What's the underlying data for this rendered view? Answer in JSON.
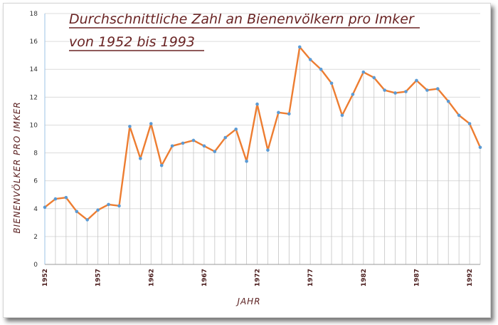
{
  "chart_data": {
    "type": "line",
    "title": "Durchschnittliche Zahl an Bienenvölkern pro Imker",
    "subtitle": "von 1952 bis 1993",
    "xlabel": "JAHR",
    "ylabel": "BIENENVÖLKER PRO IMKER",
    "ylim": [
      0,
      18
    ],
    "yticks": [
      0,
      2,
      4,
      6,
      8,
      10,
      12,
      14,
      16,
      18
    ],
    "xticks": [
      1952,
      1957,
      1962,
      1967,
      1972,
      1977,
      1982,
      1987,
      1992
    ],
    "grid": "horizontal lines and vertical drop lines",
    "line_color": "#ed7d31",
    "marker_color": "#5b9bd5",
    "x": [
      1952,
      1953,
      1954,
      1955,
      1956,
      1957,
      1958,
      1959,
      1960,
      1961,
      1962,
      1963,
      1964,
      1965,
      1966,
      1967,
      1968,
      1969,
      1970,
      1971,
      1972,
      1973,
      1974,
      1975,
      1976,
      1977,
      1978,
      1979,
      1980,
      1981,
      1982,
      1983,
      1984,
      1985,
      1986,
      1987,
      1988,
      1989,
      1990,
      1991,
      1992,
      1993
    ],
    "values": [
      4.1,
      4.7,
      4.8,
      3.8,
      3.2,
      3.9,
      4.3,
      4.2,
      9.9,
      7.6,
      10.1,
      7.1,
      8.5,
      8.7,
      8.9,
      8.5,
      8.1,
      9.1,
      9.7,
      7.4,
      11.5,
      8.2,
      10.9,
      10.8,
      15.6,
      14.7,
      14.0,
      13.0,
      10.7,
      12.2,
      13.8,
      13.4,
      12.5,
      12.3,
      12.4,
      13.2,
      12.5,
      12.6,
      11.7,
      10.7,
      10.1,
      8.4
    ]
  }
}
